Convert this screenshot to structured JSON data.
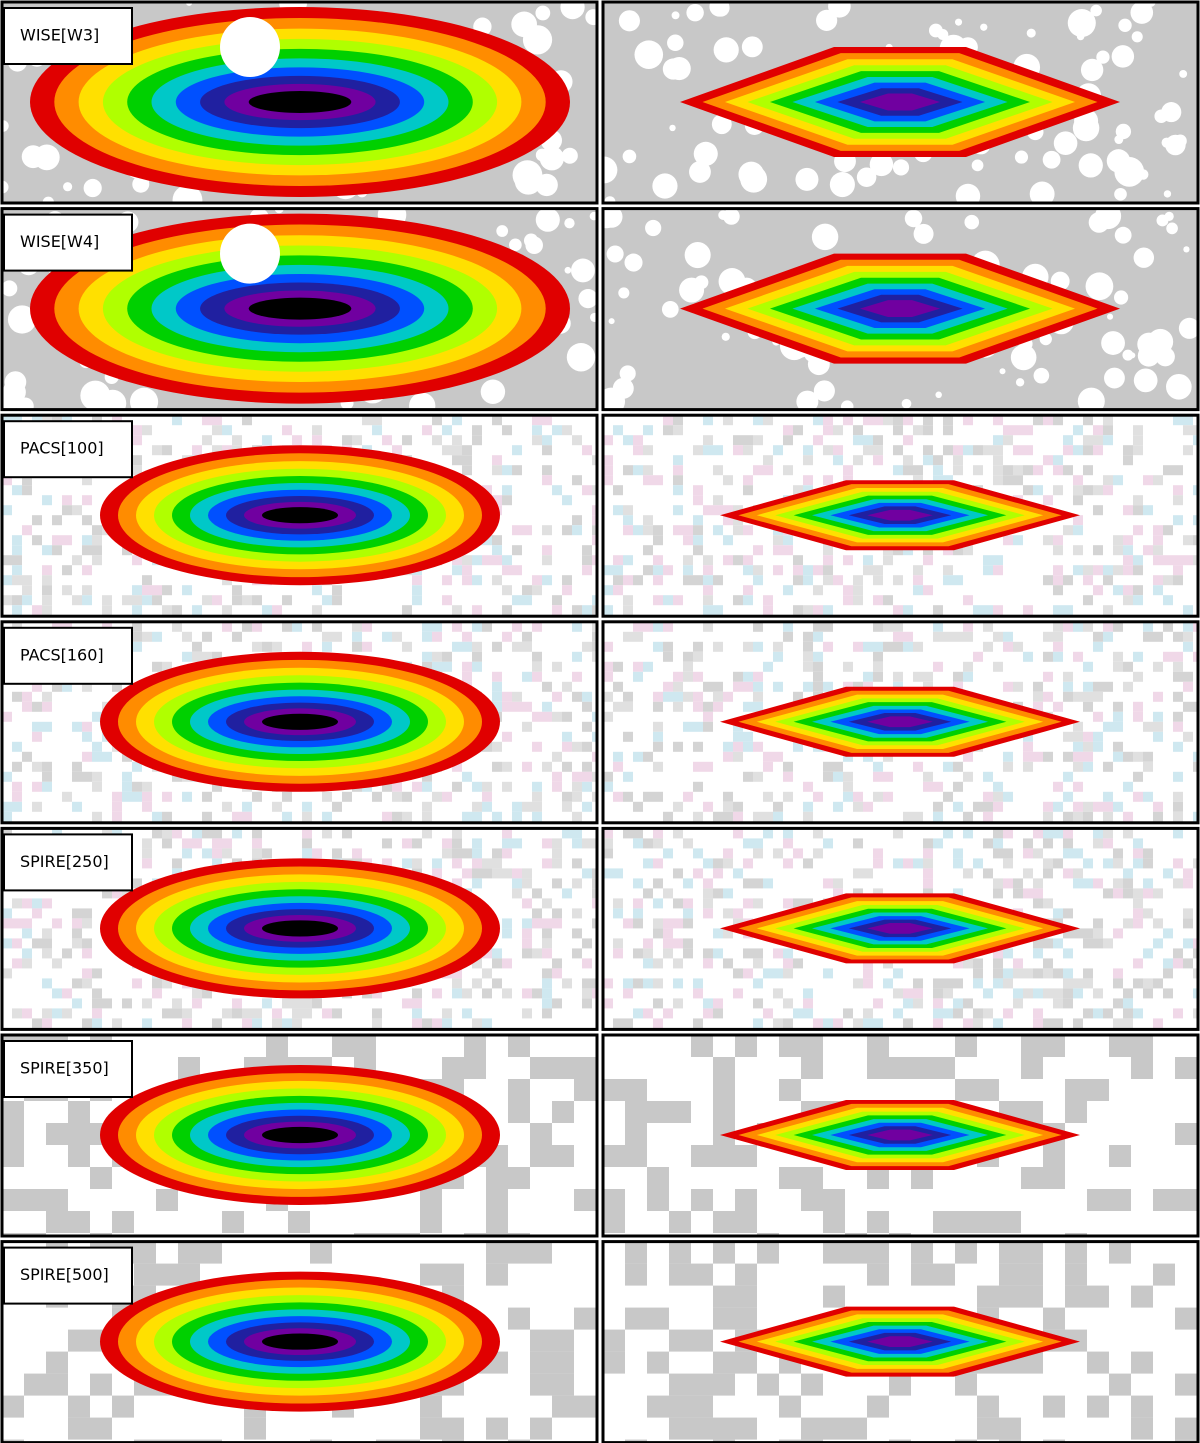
{
  "rows": [
    {
      "label": "WISE[W3]"
    },
    {
      "label": "WISE[W4]"
    },
    {
      "label": "PACS[100]"
    },
    {
      "label": "PACS[160]"
    },
    {
      "label": "SPIRE[250]"
    },
    {
      "label": "SPIRE[350]"
    },
    {
      "label": "SPIRE[500]"
    }
  ]
}
